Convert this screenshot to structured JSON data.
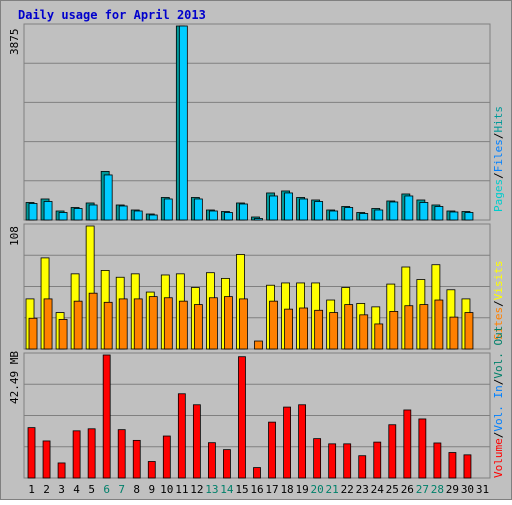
{
  "chart_data": {
    "type": "bar",
    "title": "Daily usage for April 2013",
    "categories": [
      "1",
      "2",
      "3",
      "4",
      "5",
      "6",
      "7",
      "8",
      "9",
      "10",
      "11",
      "12",
      "13",
      "14",
      "15",
      "16",
      "17",
      "18",
      "19",
      "20",
      "21",
      "22",
      "23",
      "24",
      "25",
      "26",
      "27",
      "28",
      "29",
      "30",
      "31"
    ],
    "weekend_days": [
      "6",
      "7",
      "13",
      "14",
      "20",
      "21",
      "27",
      "28"
    ],
    "panels": [
      {
        "id": "hits-files-pages",
        "max_label": "3875",
        "ylim": [
          0,
          3875
        ],
        "legend": [
          "Hits",
          "/",
          "Files",
          "/",
          "Pages"
        ],
        "series": [
          {
            "name": "Hits",
            "color": "#009999",
            "values": [
              350,
              420,
              180,
              250,
              340,
              970,
              300,
              200,
              120,
              450,
              3875,
              450,
              200,
              170,
              340,
              60,
              540,
              580,
              450,
              400,
              200,
              270,
              150,
              230,
              380,
              520,
              400,
              300,
              180,
              170,
              0
            ]
          },
          {
            "name": "Files",
            "color": "#00ccff",
            "values": [
              330,
              370,
              150,
              230,
              300,
              900,
              280,
              180,
              100,
              420,
              3875,
              420,
              180,
              150,
              320,
              30,
              480,
              540,
              420,
              370,
              180,
              250,
              130,
              200,
              360,
              480,
              350,
              270,
              160,
              150,
              0
            ]
          }
        ]
      },
      {
        "id": "visits-sites",
        "max_label": "108",
        "ylim": [
          0,
          108
        ],
        "legend": [
          "Visits",
          "/",
          "Sites"
        ],
        "series": [
          {
            "name": "Visits",
            "color": "#ffff00",
            "values": [
              44,
              80,
              32,
              66,
              108,
              69,
              63,
              66,
              50,
              65,
              66,
              54,
              67,
              62,
              83,
              0,
              56,
              58,
              58,
              58,
              43,
              54,
              40,
              37,
              57,
              72,
              61,
              74,
              52,
              44,
              0
            ]
          },
          {
            "name": "Sites",
            "color": "#ff8000",
            "values": [
              27,
              44,
              26,
              42,
              49,
              41,
              44,
              44,
              46,
              45,
              42,
              39,
              45,
              46,
              44,
              7,
              42,
              35,
              36,
              34,
              32,
              39,
              30,
              22,
              33,
              38,
              39,
              43,
              28,
              32,
              0
            ]
          }
        ]
      },
      {
        "id": "volume",
        "max_label": "42.49 MB",
        "ylim": [
          0,
          42.49
        ],
        "legend": [
          "Vol. Out",
          "/",
          "Vol. In",
          "/",
          "Volume"
        ],
        "series": [
          {
            "name": "Volume",
            "color": "#ff0000",
            "values": [
              17.4,
              12.8,
              5.2,
              16.3,
              17.0,
              42.49,
              16.7,
              13.0,
              5.7,
              14.5,
              29.1,
              25.3,
              12.2,
              9.8,
              41.9,
              3.6,
              19.3,
              24.5,
              25.3,
              13.6,
              11.8,
              11.8,
              7.7,
              12.4,
              18.4,
              23.5,
              20.4,
              12.1,
              8.8,
              8.0,
              0
            ]
          }
        ]
      }
    ],
    "colors": {
      "background": "#c0c0c0",
      "grid": "#808080",
      "title": "#0000cc",
      "axis_text": "#000000",
      "weekend_text": "#00806a",
      "legend_hits": "#009999",
      "legend_files": "#0080ff",
      "legend_pages": "#00cccc",
      "legend_visits": "#ffff00",
      "legend_sites": "#ff8000",
      "legend_volout": "#00806a",
      "legend_volin": "#0080ff",
      "legend_volume": "#ff0000"
    }
  }
}
